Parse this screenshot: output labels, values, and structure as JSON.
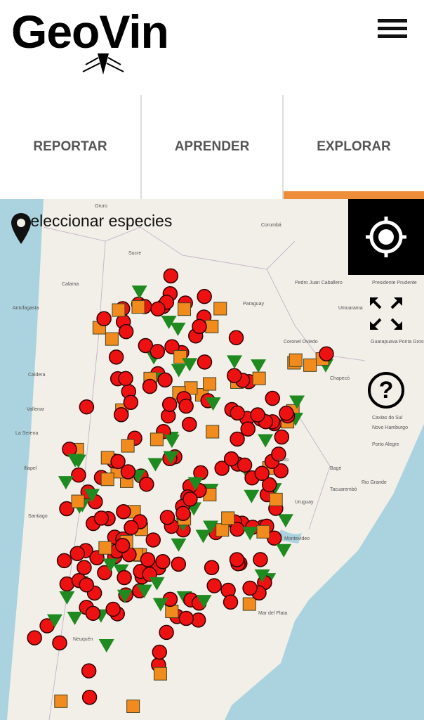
{
  "header": {
    "logo_text": "GeoVin",
    "menu_icon": "hamburger-icon"
  },
  "tabs": [
    {
      "label": "REPORTAR",
      "active": false
    },
    {
      "label": "APRENDER",
      "active": false
    },
    {
      "label": "EXPLORAR",
      "active": true
    }
  ],
  "accent_color": "#ef8e3a",
  "map": {
    "species_selector": "Seleccionar especies",
    "labels": [
      "Oruro",
      "Sucre",
      "Corumbá",
      "Paraguay",
      "Antofagasta",
      "Calama",
      "Caldera",
      "La Serena",
      "Illapel",
      "Santiago",
      "Vallenar",
      "Pedro Juan Caballero",
      "Presidente Prudente",
      "Umuarama",
      "Coronel Oviedo",
      "Guarapuava",
      "Ponta Grossa",
      "Chapecó",
      "Caxias do Sul",
      "Novo Hamburgo",
      "Porto Alegre",
      "Bagé",
      "Uruguay",
      "Montevideo",
      "Salto",
      "Rio Grande",
      "Mar del Plata",
      "Neuquén",
      "Tacuarembó"
    ],
    "marker_colors": {
      "red": "#ee1111",
      "orange": "#f28b1e",
      "green": "#1f8a1f"
    }
  }
}
